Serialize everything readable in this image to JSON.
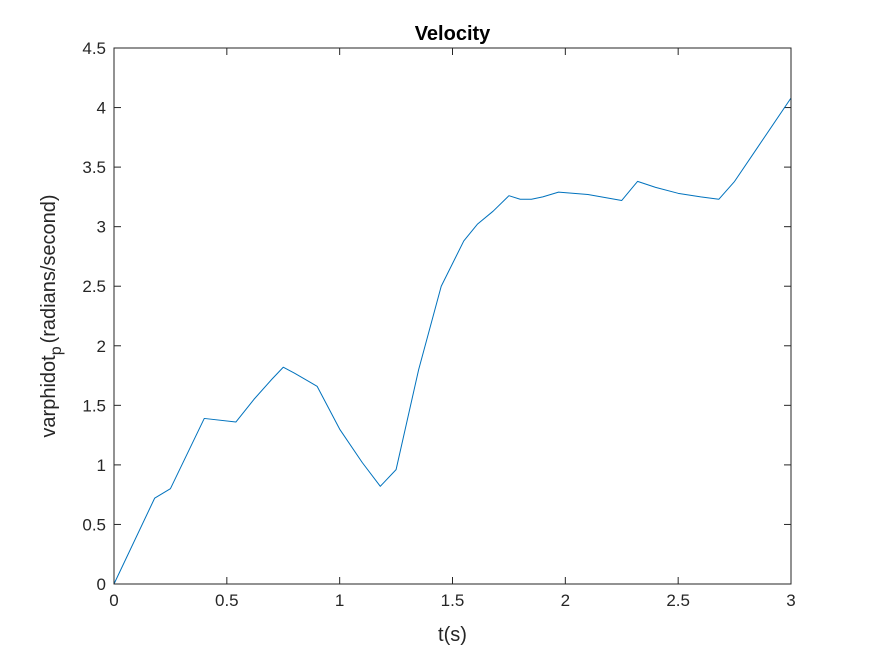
{
  "chart_data": {
    "type": "line",
    "title": "Velocity",
    "xlabel": "t(s)",
    "ylabel_main": "varphidot",
    "ylabel_sub": "p",
    "ylabel_rest": "(radians/second)",
    "xlim": [
      0,
      3
    ],
    "ylim": [
      0,
      4.5
    ],
    "xticks": [
      "0",
      "0.5",
      "1",
      "1.5",
      "2",
      "2.5",
      "3"
    ],
    "yticks": [
      "0",
      "0.5",
      "1",
      "1.5",
      "2",
      "2.5",
      "3",
      "3.5",
      "4",
      "4.5"
    ],
    "grid": false,
    "series": [
      {
        "color": "#0072BD",
        "x": [
          0,
          0.18,
          0.25,
          0.4,
          0.54,
          0.62,
          0.7,
          0.75,
          0.8,
          0.9,
          1.0,
          1.1,
          1.18,
          1.25,
          1.35,
          1.45,
          1.55,
          1.61,
          1.68,
          1.75,
          1.8,
          1.85,
          1.9,
          1.97,
          2.1,
          2.25,
          2.32,
          2.4,
          2.5,
          2.6,
          2.68,
          2.75,
          2.85,
          3.0
        ],
        "y": [
          0,
          0.72,
          0.8,
          1.39,
          1.36,
          1.55,
          1.72,
          1.82,
          1.77,
          1.66,
          1.3,
          1.02,
          0.82,
          0.96,
          1.8,
          2.5,
          2.88,
          3.02,
          3.13,
          3.26,
          3.23,
          3.23,
          3.25,
          3.29,
          3.27,
          3.22,
          3.38,
          3.33,
          3.28,
          3.25,
          3.23,
          3.38,
          3.66,
          4.08
        ]
      }
    ]
  }
}
